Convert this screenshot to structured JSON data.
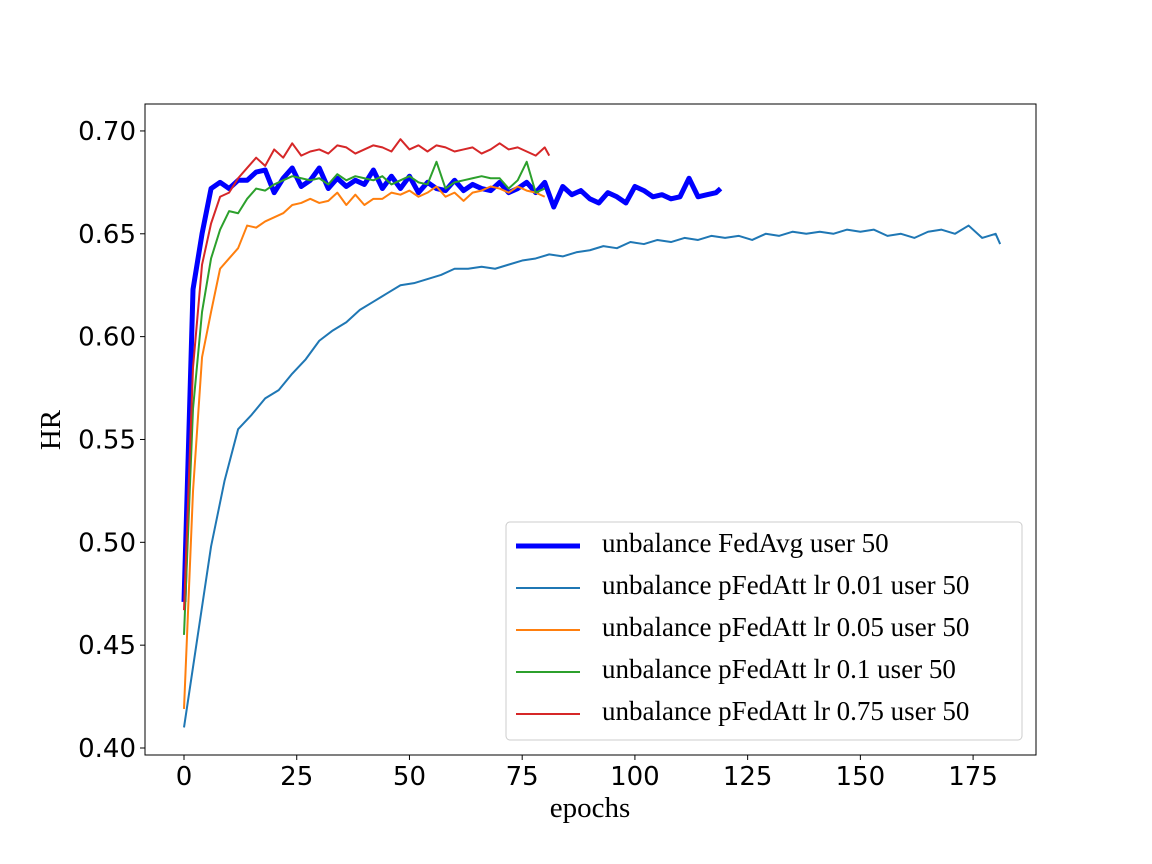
{
  "chart_data": {
    "type": "line",
    "xlabel": "epochs",
    "ylabel": "HR",
    "xlim": [
      -8.65,
      188.95
    ],
    "ylim": [
      0.3966,
      0.7131
    ],
    "xticks": [
      0,
      25,
      50,
      75,
      100,
      125,
      150,
      175
    ],
    "yticks": [
      {
        "value": 0.4,
        "label": "0.40"
      },
      0.45,
      {
        "value": 0.5,
        "label": "0.50"
      },
      0.55,
      {
        "value": 0.6,
        "label": "0.60"
      },
      0.65,
      {
        "value": 0.7,
        "label": "0.70"
      }
    ],
    "grid": false,
    "legend": "lower right",
    "series": [
      {
        "name": "unbalance FedAvg user 50",
        "color": "#0000ff",
        "linewidth": 5,
        "x": [
          0,
          2,
          4,
          6,
          8,
          10,
          12,
          14,
          16,
          18,
          20,
          22,
          24,
          26,
          28,
          30,
          32,
          34,
          36,
          38,
          40,
          42,
          44,
          46,
          48,
          50,
          52,
          54,
          56,
          58,
          60,
          62,
          64,
          66,
          68,
          70,
          72,
          74,
          76,
          78,
          80,
          82,
          84,
          86,
          88,
          90,
          92,
          94,
          96,
          98,
          100,
          102,
          104,
          106,
          108,
          110,
          112,
          114,
          116,
          118,
          119
        ],
        "values": [
          0.471,
          0.623,
          0.65,
          0.672,
          0.675,
          0.672,
          0.676,
          0.676,
          0.68,
          0.681,
          0.67,
          0.677,
          0.682,
          0.673,
          0.676,
          0.682,
          0.672,
          0.677,
          0.673,
          0.676,
          0.674,
          0.681,
          0.672,
          0.678,
          0.672,
          0.678,
          0.67,
          0.675,
          0.672,
          0.671,
          0.676,
          0.671,
          0.674,
          0.672,
          0.671,
          0.675,
          0.67,
          0.672,
          0.675,
          0.67,
          0.675,
          0.663,
          0.673,
          0.669,
          0.671,
          0.667,
          0.665,
          0.67,
          0.668,
          0.665,
          0.673,
          0.671,
          0.668,
          0.669,
          0.667,
          0.668,
          0.677,
          0.668,
          0.669,
          0.67,
          0.672
        ]
      },
      {
        "name": "unbalance pFedAtt lr 0.01 user 50",
        "color": "#1f77b4",
        "linewidth": 2,
        "x": [
          0,
          3,
          6,
          9,
          12,
          15,
          18,
          21,
          24,
          27,
          30,
          33,
          36,
          39,
          42,
          45,
          48,
          51,
          54,
          57,
          60,
          63,
          66,
          69,
          72,
          75,
          78,
          81,
          84,
          87,
          90,
          93,
          96,
          99,
          102,
          105,
          108,
          111,
          114,
          117,
          120,
          123,
          126,
          129,
          132,
          135,
          138,
          141,
          144,
          147,
          150,
          153,
          156,
          159,
          162,
          165,
          168,
          171,
          174,
          177,
          180,
          181
        ],
        "values": [
          0.41,
          0.454,
          0.498,
          0.53,
          0.555,
          0.562,
          0.57,
          0.574,
          0.582,
          0.589,
          0.598,
          0.603,
          0.607,
          0.613,
          0.617,
          0.621,
          0.625,
          0.626,
          0.628,
          0.63,
          0.633,
          0.633,
          0.634,
          0.633,
          0.635,
          0.637,
          0.638,
          0.64,
          0.639,
          0.641,
          0.642,
          0.644,
          0.643,
          0.646,
          0.645,
          0.647,
          0.646,
          0.648,
          0.647,
          0.649,
          0.648,
          0.649,
          0.647,
          0.65,
          0.649,
          0.651,
          0.65,
          0.651,
          0.65,
          0.652,
          0.651,
          0.652,
          0.649,
          0.65,
          0.648,
          0.651,
          0.652,
          0.65,
          0.654,
          0.648,
          0.65,
          0.645
        ]
      },
      {
        "name": "unbalance pFedAtt lr 0.05 user 50",
        "color": "#ff7f0e",
        "linewidth": 2,
        "x": [
          0,
          2,
          4,
          6,
          8,
          10,
          12,
          14,
          16,
          18,
          20,
          22,
          24,
          26,
          28,
          30,
          32,
          34,
          36,
          38,
          40,
          42,
          44,
          46,
          48,
          50,
          52,
          54,
          56,
          58,
          60,
          62,
          64,
          66,
          68,
          70,
          72,
          74,
          76,
          78,
          80
        ],
        "values": [
          0.419,
          0.525,
          0.59,
          0.612,
          0.633,
          0.638,
          0.643,
          0.654,
          0.653,
          0.656,
          0.658,
          0.66,
          0.664,
          0.665,
          0.667,
          0.665,
          0.666,
          0.67,
          0.664,
          0.669,
          0.664,
          0.667,
          0.667,
          0.67,
          0.669,
          0.671,
          0.668,
          0.67,
          0.673,
          0.668,
          0.67,
          0.666,
          0.67,
          0.671,
          0.673,
          0.672,
          0.67,
          0.673,
          0.671,
          0.67,
          0.668
        ]
      },
      {
        "name": "unbalance pFedAtt lr 0.1 user 50",
        "color": "#2ca02c",
        "linewidth": 2,
        "x": [
          0,
          2,
          4,
          6,
          8,
          10,
          12,
          14,
          16,
          18,
          20,
          22,
          24,
          26,
          28,
          30,
          32,
          34,
          36,
          38,
          40,
          42,
          44,
          46,
          48,
          50,
          52,
          54,
          56,
          58,
          60,
          62,
          64,
          66,
          68,
          70,
          72,
          74,
          76,
          78,
          80
        ],
        "values": [
          0.455,
          0.565,
          0.612,
          0.638,
          0.652,
          0.661,
          0.66,
          0.667,
          0.672,
          0.671,
          0.674,
          0.676,
          0.678,
          0.677,
          0.676,
          0.677,
          0.674,
          0.679,
          0.676,
          0.678,
          0.677,
          0.676,
          0.678,
          0.674,
          0.676,
          0.678,
          0.675,
          0.674,
          0.685,
          0.672,
          0.675,
          0.676,
          0.677,
          0.678,
          0.677,
          0.677,
          0.672,
          0.676,
          0.685,
          0.67,
          0.672
        ]
      },
      {
        "name": "unbalance pFedAtt lr 0.75 user 50",
        "color": "#d62728",
        "linewidth": 2,
        "x": [
          0,
          2,
          4,
          6,
          8,
          10,
          12,
          14,
          16,
          18,
          20,
          22,
          24,
          26,
          28,
          30,
          32,
          34,
          36,
          38,
          40,
          42,
          44,
          46,
          48,
          50,
          52,
          54,
          56,
          58,
          60,
          62,
          64,
          66,
          68,
          70,
          72,
          74,
          76,
          78,
          80,
          81
        ],
        "values": [
          0.467,
          0.585,
          0.635,
          0.655,
          0.668,
          0.67,
          0.677,
          0.682,
          0.687,
          0.683,
          0.691,
          0.687,
          0.694,
          0.688,
          0.69,
          0.691,
          0.689,
          0.693,
          0.692,
          0.689,
          0.691,
          0.693,
          0.692,
          0.69,
          0.696,
          0.691,
          0.693,
          0.69,
          0.693,
          0.692,
          0.69,
          0.691,
          0.692,
          0.689,
          0.691,
          0.694,
          0.691,
          0.692,
          0.69,
          0.688,
          0.692,
          0.688
        ]
      }
    ]
  }
}
